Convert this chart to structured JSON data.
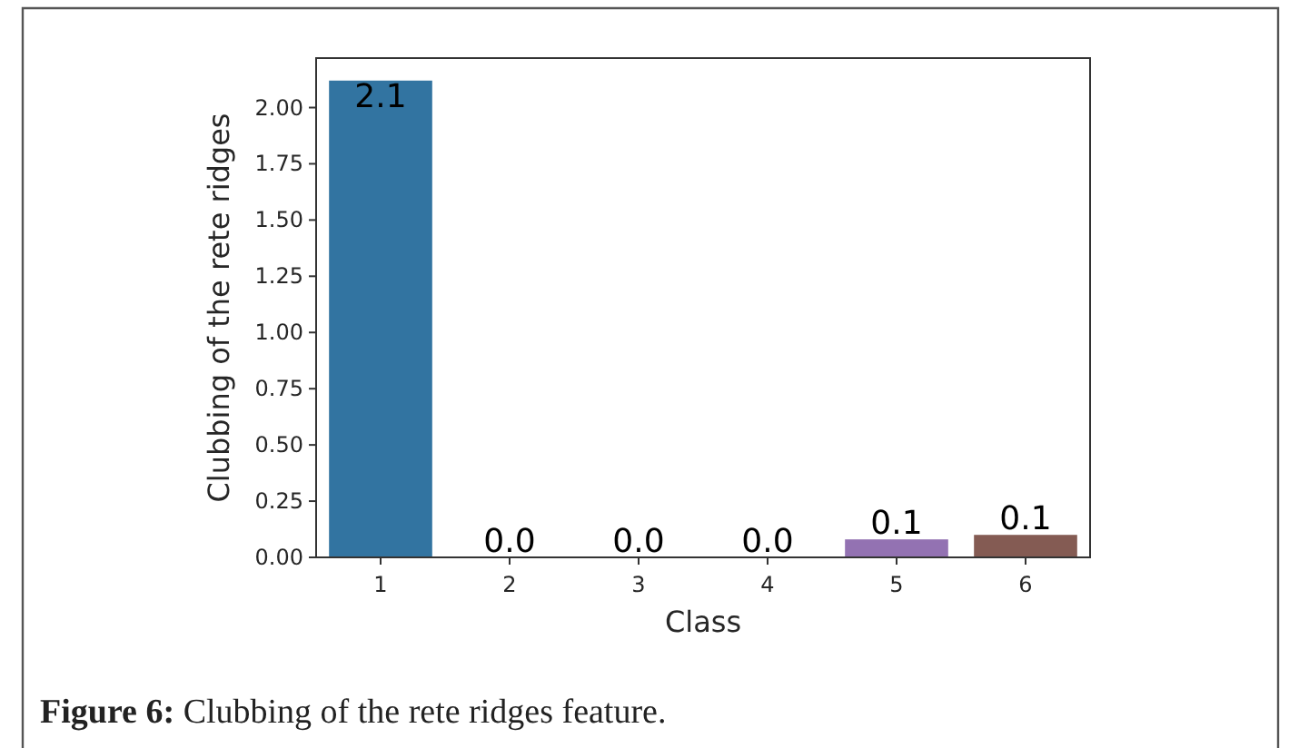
{
  "chart_data": {
    "type": "bar",
    "title": "Figure 6: Clubbing of the rete ridges feature.",
    "xlabel": "Class",
    "ylabel": "Clubbing of the rete ridges",
    "categories": [
      "1",
      "2",
      "3",
      "4",
      "5",
      "6"
    ],
    "values": [
      2.12,
      0,
      0,
      0,
      0.08,
      0.1
    ],
    "colors": [
      "#3274a1",
      "#e1812c",
      "#3a923a",
      "#c03d3e",
      "#9372b2",
      "#845b53"
    ],
    "value_labels": [
      "2.1",
      "0.0",
      "0.0",
      "0.0",
      "0.1",
      "0.1"
    ],
    "ylim": [
      0,
      2.22
    ],
    "yticks": [
      {
        "value": 0,
        "label": "0.00"
      },
      {
        "value": 0.25,
        "label": "0.25"
      },
      {
        "value": 0.5,
        "label": "0.50"
      },
      {
        "value": 0.75,
        "label": "0.75"
      },
      {
        "value": 1,
        "label": "1.00"
      },
      {
        "value": 1.25,
        "label": "1.25"
      },
      {
        "value": 1.5,
        "label": "1.50"
      },
      {
        "value": 1.75,
        "label": "1.75"
      },
      {
        "value": 2,
        "label": "2.00"
      }
    ],
    "grid": false
  }
}
